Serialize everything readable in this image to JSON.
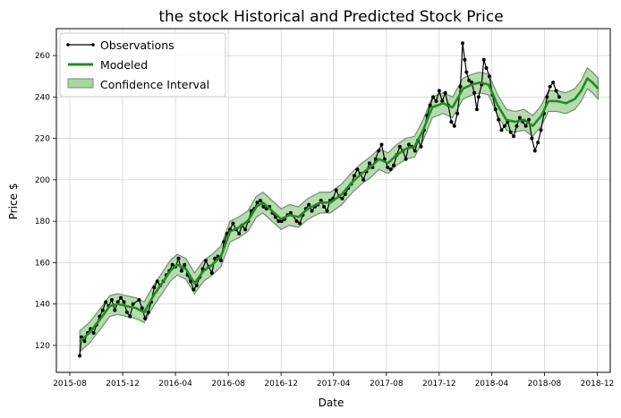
{
  "chart_data": {
    "type": "line",
    "title": "the stock Historical and Predicted Stock Price",
    "xlabel": "Date",
    "ylabel": "Price $",
    "x_range": [
      "2015-07-01",
      "2018-12-31"
    ],
    "ylim": [
      107,
      273
    ],
    "grid": true,
    "legend_placement": "top-left",
    "x_ticks": [
      {
        "date": "2015-08-01",
        "label": "2015-08"
      },
      {
        "date": "2015-12-01",
        "label": "2015-12"
      },
      {
        "date": "2016-04-01",
        "label": "2016-04"
      },
      {
        "date": "2016-08-01",
        "label": "2016-08"
      },
      {
        "date": "2016-12-01",
        "label": "2016-12"
      },
      {
        "date": "2017-04-01",
        "label": "2017-04"
      },
      {
        "date": "2017-08-01",
        "label": "2017-08"
      },
      {
        "date": "2017-12-01",
        "label": "2017-12"
      },
      {
        "date": "2018-04-01",
        "label": "2018-04"
      },
      {
        "date": "2018-08-01",
        "label": "2018-08"
      },
      {
        "date": "2018-12-01",
        "label": "2018-12"
      }
    ],
    "y_ticks": [
      120,
      140,
      160,
      180,
      200,
      220,
      240,
      260
    ],
    "colors": {
      "observations": "#000000",
      "modeled": "#228b22",
      "interval_fill": "#a8d5a0",
      "interval_edge": "#6f8f6c"
    },
    "series": [
      {
        "name": "Observations",
        "kind": "line_with_markers",
        "points": [
          [
            "2015-08-24",
            115
          ],
          [
            "2015-08-28",
            124
          ],
          [
            "2015-09-04",
            122
          ],
          [
            "2015-09-11",
            126
          ],
          [
            "2015-09-18",
            128
          ],
          [
            "2015-09-25",
            126
          ],
          [
            "2015-10-02",
            130
          ],
          [
            "2015-10-09",
            134
          ],
          [
            "2015-10-16",
            137
          ],
          [
            "2015-10-23",
            141
          ],
          [
            "2015-10-30",
            139
          ],
          [
            "2015-11-06",
            142
          ],
          [
            "2015-11-13",
            137
          ],
          [
            "2015-11-20",
            141
          ],
          [
            "2015-11-27",
            143
          ],
          [
            "2015-12-04",
            141
          ],
          [
            "2015-12-11",
            136
          ],
          [
            "2015-12-18",
            134
          ],
          [
            "2015-12-25",
            140
          ],
          [
            "2016-01-08",
            142
          ],
          [
            "2016-01-15",
            138
          ],
          [
            "2016-01-22",
            133
          ],
          [
            "2016-01-29",
            136
          ],
          [
            "2016-02-05",
            141
          ],
          [
            "2016-02-12",
            148
          ],
          [
            "2016-02-19",
            151
          ],
          [
            "2016-02-26",
            149
          ],
          [
            "2016-03-04",
            151
          ],
          [
            "2016-03-11",
            154
          ],
          [
            "2016-03-18",
            156
          ],
          [
            "2016-03-25",
            159
          ],
          [
            "2016-04-01",
            158
          ],
          [
            "2016-04-08",
            162
          ],
          [
            "2016-04-15",
            156
          ],
          [
            "2016-04-22",
            159
          ],
          [
            "2016-04-29",
            154
          ],
          [
            "2016-05-06",
            151
          ],
          [
            "2016-05-13",
            147
          ],
          [
            "2016-05-20",
            149
          ],
          [
            "2016-05-27",
            153
          ],
          [
            "2016-06-03",
            157
          ],
          [
            "2016-06-10",
            161
          ],
          [
            "2016-06-17",
            158
          ],
          [
            "2016-06-24",
            155
          ],
          [
            "2016-07-01",
            162
          ],
          [
            "2016-07-08",
            163
          ],
          [
            "2016-07-15",
            161
          ],
          [
            "2016-07-22",
            170
          ],
          [
            "2016-07-29",
            174
          ],
          [
            "2016-08-05",
            176
          ],
          [
            "2016-08-12",
            179
          ],
          [
            "2016-08-19",
            176
          ],
          [
            "2016-08-26",
            174
          ],
          [
            "2016-09-02",
            178
          ],
          [
            "2016-09-09",
            176
          ],
          [
            "2016-09-16",
            180
          ],
          [
            "2016-09-23",
            185
          ],
          [
            "2016-09-30",
            186
          ],
          [
            "2016-10-07",
            189
          ],
          [
            "2016-10-14",
            190
          ],
          [
            "2016-10-21",
            187
          ],
          [
            "2016-10-28",
            186
          ],
          [
            "2016-11-04",
            187
          ],
          [
            "2016-11-11",
            184
          ],
          [
            "2016-11-18",
            182
          ],
          [
            "2016-11-25",
            180
          ],
          [
            "2016-12-02",
            180
          ],
          [
            "2016-12-09",
            181
          ],
          [
            "2016-12-16",
            183
          ],
          [
            "2016-12-23",
            184
          ],
          [
            "2017-01-06",
            180
          ],
          [
            "2017-01-13",
            179
          ],
          [
            "2017-01-20",
            183
          ],
          [
            "2017-01-27",
            186
          ],
          [
            "2017-02-03",
            188
          ],
          [
            "2017-02-10",
            185
          ],
          [
            "2017-02-17",
            187
          ],
          [
            "2017-02-24",
            188
          ],
          [
            "2017-03-03",
            190
          ],
          [
            "2017-03-10",
            187
          ],
          [
            "2017-03-17",
            185
          ],
          [
            "2017-03-24",
            190
          ],
          [
            "2017-03-31",
            191
          ],
          [
            "2017-04-07",
            195
          ],
          [
            "2017-04-14",
            192
          ],
          [
            "2017-04-21",
            191
          ],
          [
            "2017-04-28",
            193
          ],
          [
            "2017-05-05",
            196
          ],
          [
            "2017-05-12",
            198
          ],
          [
            "2017-05-19",
            202
          ],
          [
            "2017-05-26",
            205
          ],
          [
            "2017-06-02",
            203
          ],
          [
            "2017-06-09",
            200
          ],
          [
            "2017-06-16",
            204
          ],
          [
            "2017-06-23",
            208
          ],
          [
            "2017-06-30",
            206
          ],
          [
            "2017-07-07",
            210
          ],
          [
            "2017-07-14",
            214
          ],
          [
            "2017-07-21",
            217
          ],
          [
            "2017-07-28",
            210
          ],
          [
            "2017-08-04",
            206
          ],
          [
            "2017-08-11",
            205
          ],
          [
            "2017-08-18",
            207
          ],
          [
            "2017-08-25",
            212
          ],
          [
            "2017-09-01",
            216
          ],
          [
            "2017-09-08",
            214
          ],
          [
            "2017-09-15",
            210
          ],
          [
            "2017-09-22",
            217
          ],
          [
            "2017-09-29",
            216
          ],
          [
            "2017-10-06",
            214
          ],
          [
            "2017-10-13",
            219
          ],
          [
            "2017-10-20",
            216
          ],
          [
            "2017-10-27",
            224
          ],
          [
            "2017-11-03",
            231
          ],
          [
            "2017-11-10",
            236
          ],
          [
            "2017-11-17",
            240
          ],
          [
            "2017-11-24",
            238
          ],
          [
            "2017-12-01",
            243
          ],
          [
            "2017-12-08",
            238
          ],
          [
            "2017-12-15",
            242
          ],
          [
            "2017-12-22",
            236
          ],
          [
            "2017-12-29",
            228
          ],
          [
            "2018-01-05",
            226
          ],
          [
            "2018-01-12",
            232
          ],
          [
            "2018-01-19",
            245
          ],
          [
            "2018-01-24",
            266
          ],
          [
            "2018-01-29",
            258
          ],
          [
            "2018-02-02",
            252
          ],
          [
            "2018-02-08",
            248
          ],
          [
            "2018-02-14",
            247
          ],
          [
            "2018-02-20",
            242
          ],
          [
            "2018-02-26",
            234
          ],
          [
            "2018-03-02",
            240
          ],
          [
            "2018-03-09",
            246
          ],
          [
            "2018-03-14",
            258
          ],
          [
            "2018-03-20",
            254
          ],
          [
            "2018-03-27",
            250
          ],
          [
            "2018-04-03",
            241
          ],
          [
            "2018-04-10",
            234
          ],
          [
            "2018-04-17",
            229
          ],
          [
            "2018-04-24",
            224
          ],
          [
            "2018-05-01",
            226
          ],
          [
            "2018-05-08",
            228
          ],
          [
            "2018-05-15",
            223
          ],
          [
            "2018-05-22",
            221
          ],
          [
            "2018-05-29",
            226
          ],
          [
            "2018-06-05",
            230
          ],
          [
            "2018-06-12",
            228
          ],
          [
            "2018-06-19",
            226
          ],
          [
            "2018-06-26",
            229
          ],
          [
            "2018-07-03",
            220
          ],
          [
            "2018-07-10",
            214
          ],
          [
            "2018-07-17",
            218
          ],
          [
            "2018-07-24",
            224
          ],
          [
            "2018-07-31",
            232
          ],
          [
            "2018-08-07",
            240
          ],
          [
            "2018-08-14",
            245
          ],
          [
            "2018-08-21",
            247
          ],
          [
            "2018-08-28",
            243
          ],
          [
            "2018-09-04",
            240
          ]
        ]
      },
      {
        "name": "Modeled",
        "kind": "line",
        "points": [
          [
            "2015-08-24",
            122
          ],
          [
            "2015-09-15",
            126
          ],
          [
            "2015-10-15",
            134
          ],
          [
            "2015-11-01",
            139
          ],
          [
            "2015-11-20",
            140
          ],
          [
            "2015-12-10",
            139
          ],
          [
            "2016-01-01",
            138
          ],
          [
            "2016-01-20",
            136
          ],
          [
            "2016-02-10",
            144
          ],
          [
            "2016-03-01",
            150
          ],
          [
            "2016-03-20",
            156
          ],
          [
            "2016-04-05",
            159
          ],
          [
            "2016-04-25",
            157
          ],
          [
            "2016-05-15",
            150
          ],
          [
            "2016-06-05",
            156
          ],
          [
            "2016-06-25",
            159
          ],
          [
            "2016-07-15",
            163
          ],
          [
            "2016-08-05",
            175
          ],
          [
            "2016-08-25",
            177
          ],
          [
            "2016-09-15",
            180
          ],
          [
            "2016-10-05",
            187
          ],
          [
            "2016-10-20",
            189
          ],
          [
            "2016-11-10",
            185
          ],
          [
            "2016-12-01",
            181
          ],
          [
            "2016-12-20",
            183
          ],
          [
            "2017-01-10",
            182
          ],
          [
            "2017-02-01",
            186
          ],
          [
            "2017-03-01",
            189
          ],
          [
            "2017-03-25",
            189
          ],
          [
            "2017-04-20",
            193
          ],
          [
            "2017-05-15",
            199
          ],
          [
            "2017-06-05",
            203
          ],
          [
            "2017-06-25",
            206
          ],
          [
            "2017-07-15",
            210
          ],
          [
            "2017-08-05",
            208
          ],
          [
            "2017-08-25",
            212
          ],
          [
            "2017-09-15",
            215
          ],
          [
            "2017-10-05",
            216
          ],
          [
            "2017-10-25",
            224
          ],
          [
            "2017-11-15",
            235
          ],
          [
            "2017-12-10",
            237
          ],
          [
            "2018-01-01",
            235
          ],
          [
            "2018-01-25",
            244
          ],
          [
            "2018-02-15",
            246
          ],
          [
            "2018-03-05",
            247
          ],
          [
            "2018-03-25",
            246
          ],
          [
            "2018-04-15",
            236
          ],
          [
            "2018-05-05",
            229
          ],
          [
            "2018-05-25",
            228
          ],
          [
            "2018-06-15",
            229
          ],
          [
            "2018-07-05",
            226
          ],
          [
            "2018-07-25",
            231
          ],
          [
            "2018-08-10",
            238
          ],
          [
            "2018-08-30",
            238
          ],
          [
            "2018-09-20",
            237
          ],
          [
            "2018-10-10",
            239
          ],
          [
            "2018-10-25",
            243
          ],
          [
            "2018-11-08",
            249
          ],
          [
            "2018-11-20",
            247
          ],
          [
            "2018-12-03",
            244
          ]
        ]
      }
    ],
    "confidence_interval": {
      "name": "Confidence Interval",
      "half_width": 5
    }
  }
}
